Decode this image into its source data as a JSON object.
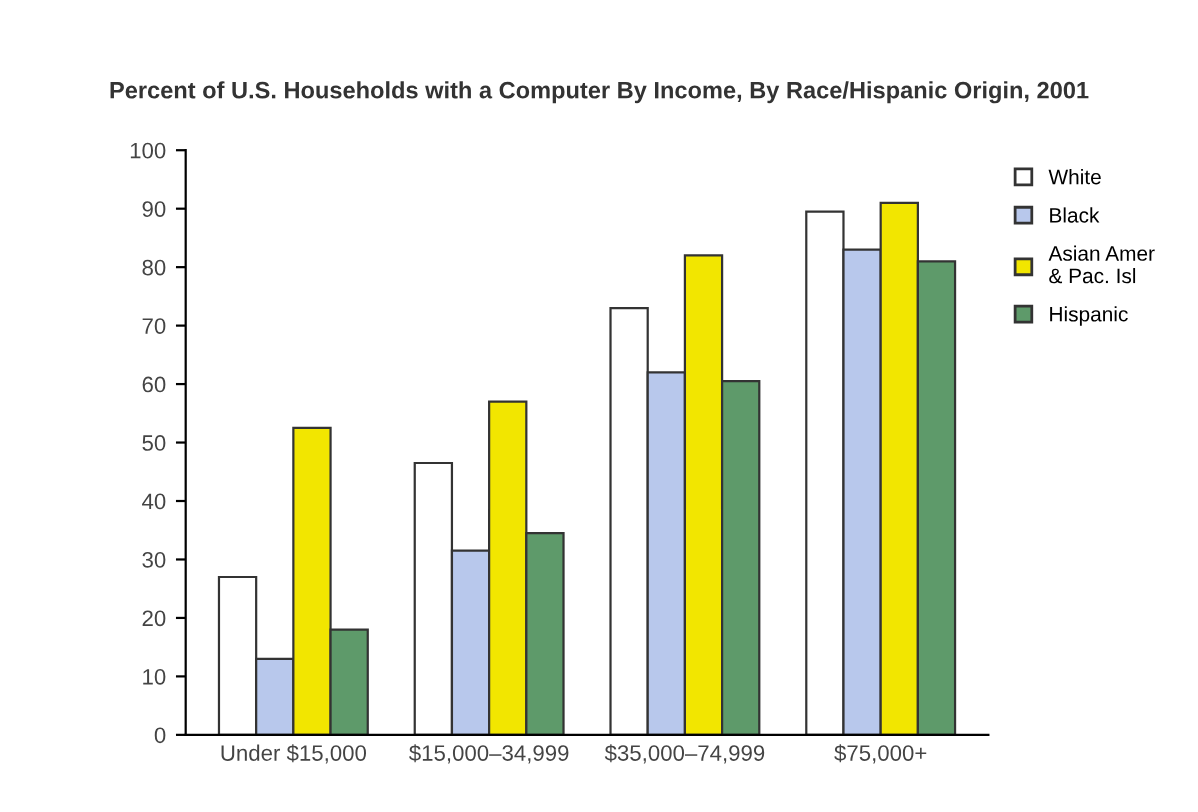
{
  "chart_data": {
    "type": "bar",
    "title": "Percent of U.S. Households with a Computer By Income, By Race/Hispanic Origin, 2001",
    "categories": [
      "Under $15,000",
      "$15,000–34,999",
      "$35,000–74,999",
      "$75,000+"
    ],
    "series": [
      {
        "name": "White",
        "color": "#ffffff",
        "values": [
          27,
          46.5,
          73,
          89.5
        ]
      },
      {
        "name": "Black",
        "color": "#b8c8ec",
        "values": [
          13,
          31.5,
          62,
          83
        ]
      },
      {
        "name": "Asian Amer\n& Pac. Isl",
        "color": "#f2e600",
        "values": [
          52.5,
          57,
          82,
          91
        ]
      },
      {
        "name": "Hispanic",
        "color": "#5e9a6a",
        "values": [
          18,
          34.5,
          60.5,
          81
        ]
      }
    ],
    "ylim": [
      0,
      100
    ],
    "yticks": [
      0,
      10,
      20,
      30,
      40,
      50,
      60,
      70,
      80,
      90,
      100
    ],
    "grid": false,
    "legend": "right"
  }
}
